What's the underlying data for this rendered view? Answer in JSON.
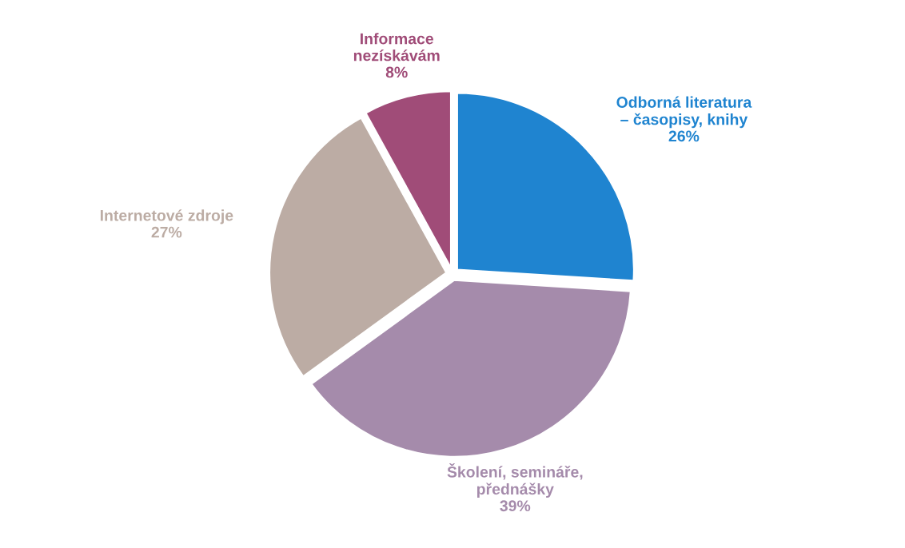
{
  "chart_data": {
    "type": "pie",
    "categories": [
      "Odborná literatura\n– časopisy, knihy",
      "Školení, semináře,\npřednášky",
      "Internetové zdroje",
      "Informace\nnezískávám"
    ],
    "values": [
      26,
      39,
      27,
      8
    ],
    "colors": [
      "#1f84d0",
      "#a58bab",
      "#bcaca4",
      "#a04c78"
    ],
    "value_labels": [
      "26%",
      "39%",
      "27%",
      "8%"
    ],
    "legend": false
  }
}
